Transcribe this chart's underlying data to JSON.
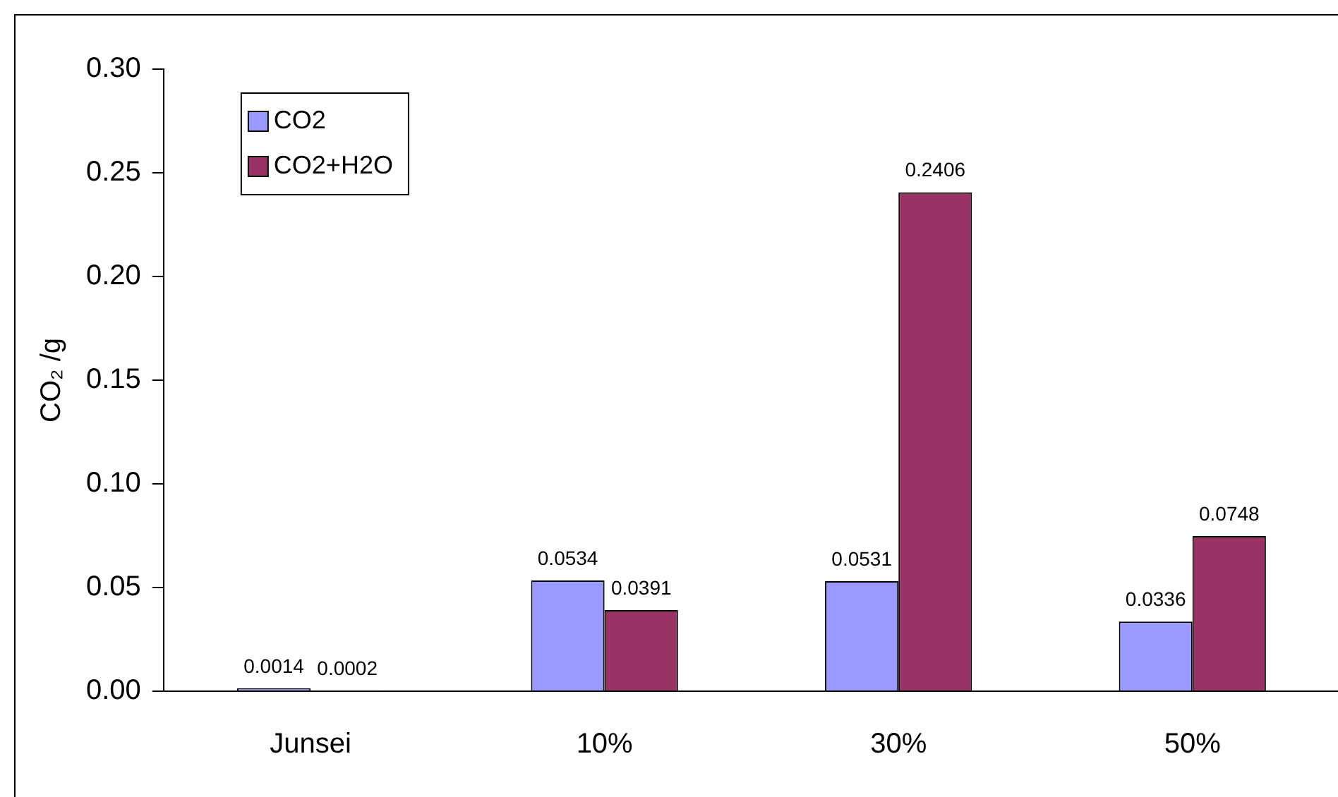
{
  "chart_data": {
    "type": "bar",
    "ylabel": "CO₂ /g",
    "categories": [
      "Junsei",
      "10%",
      "30%",
      "50%"
    ],
    "series": [
      {
        "name": "CO2",
        "color": "#9999ff",
        "values": [
          0.0014,
          0.0534,
          0.0531,
          0.0336
        ]
      },
      {
        "name": "CO2+H2O",
        "color": "#993366",
        "values": [
          0.0002,
          0.0391,
          0.2406,
          0.0748
        ]
      }
    ],
    "ylim": [
      0,
      0.3
    ],
    "yticks": [
      {
        "value": 0,
        "label": "0.00"
      },
      {
        "value": 0.05,
        "label": "0.05"
      },
      {
        "value": 0.1,
        "label": "0.10"
      },
      {
        "value": 0.15,
        "label": "0.15"
      },
      {
        "value": 0.2,
        "label": "0.20"
      },
      {
        "value": 0.25,
        "label": "0.25"
      },
      {
        "value": 0.3,
        "label": "0.30"
      }
    ],
    "grid": false,
    "legend": "top left",
    "data_labels": true
  }
}
